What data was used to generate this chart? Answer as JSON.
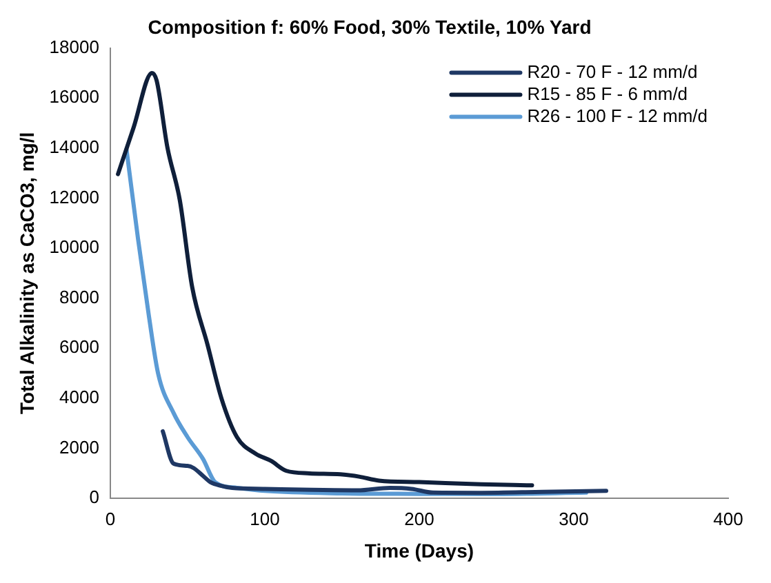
{
  "chart_data": {
    "type": "line",
    "title": "Composition f: 60% Food, 30% Textile, 10% Yard",
    "xlabel": "Time (Days)",
    "ylabel": "Total Alkalinity as CaCO3, mg/l",
    "xlim": [
      0,
      400
    ],
    "xticks": [
      0,
      100,
      200,
      300,
      400
    ],
    "ylim": [
      0,
      18000
    ],
    "yticks": [
      0,
      2000,
      4000,
      6000,
      8000,
      10000,
      12000,
      14000,
      16000,
      18000
    ],
    "grid": false,
    "legend": "top right",
    "marker": "none",
    "line_style": "solid",
    "series": [
      {
        "name": "R20 - 70 F - 12 mm/d",
        "color": "#1f3864",
        "x": [
          34,
          41,
          50,
          54,
          60,
          65,
          72,
          79,
          100,
          130,
          160,
          181,
          195,
          209,
          240,
          280,
          321
        ],
        "values": [
          2680,
          1390,
          1300,
          1210,
          900,
          640,
          500,
          420,
          380,
          340,
          320,
          420,
          380,
          230,
          220,
          260,
          300
        ]
      },
      {
        "name": "R15 - 85 F - 6 mm/d",
        "color": "#0f1f3a",
        "x": [
          5,
          15,
          27,
          30,
          37,
          45,
          53,
          63,
          72,
          82,
          94,
          104,
          114,
          129,
          149,
          161,
          174,
          200,
          240,
          273
        ],
        "values": [
          12960,
          14800,
          17000,
          16700,
          14020,
          11920,
          8450,
          6130,
          3990,
          2450,
          1790,
          1500,
          1100,
          1000,
          960,
          870,
          710,
          650,
          560,
          520
        ]
      },
      {
        "name": "R26 - 100 F - 12 mm/d",
        "color": "#5b9bd5",
        "x": [
          10.5,
          18,
          25,
          31,
          41,
          50,
          60,
          68,
          82,
          100,
          150,
          200,
          250,
          308
        ],
        "values": [
          13950,
          10360,
          7290,
          4980,
          3410,
          2450,
          1580,
          640,
          420,
          300,
          200,
          180,
          170,
          230
        ]
      }
    ]
  }
}
